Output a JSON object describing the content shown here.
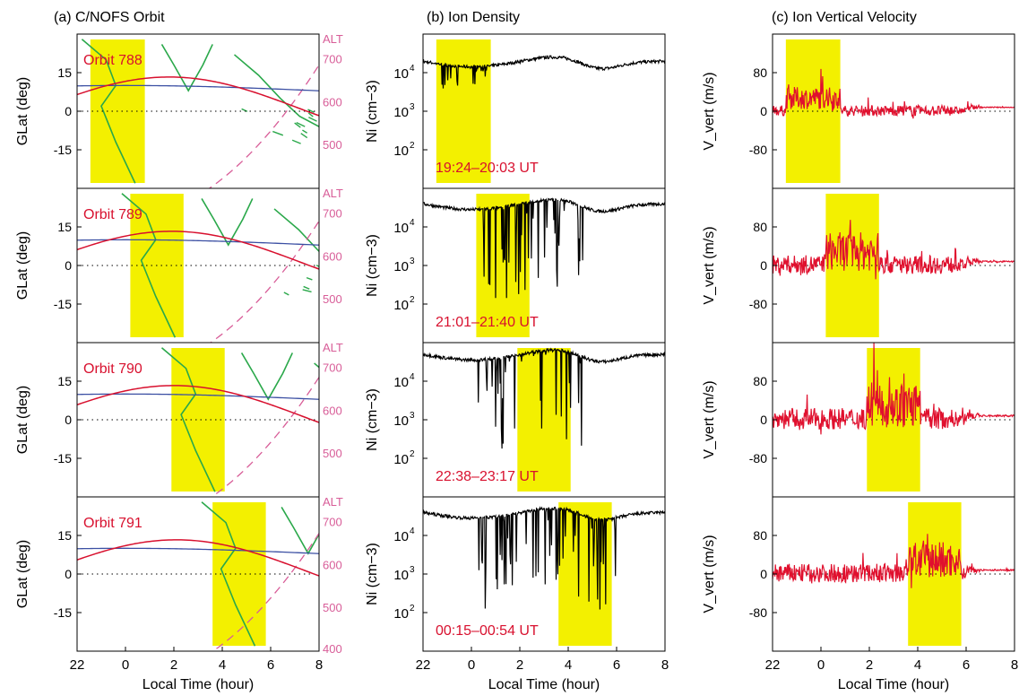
{
  "chart_data": {
    "type": "line",
    "colors": {
      "highlight": "#f3f000",
      "orbit_track": "#d8102e",
      "dip_equator": "#3b4fa3",
      "altitude": "#d85d98",
      "coastline": "#2aa84a",
      "density": "#000000",
      "velocity": "#e0102e"
    },
    "columns": [
      {
        "title": "(a) C/NOFS Orbit",
        "ylabel": "GLat (deg)",
        "ylabel_right": "ALT",
        "ylim": [
          -30,
          30
        ],
        "yticks": [
          -15,
          0,
          15
        ],
        "yticks_right": [
          400,
          500,
          600,
          700
        ]
      },
      {
        "title": "(b) Ion Density",
        "ylabel": "Ni (cm−3)",
        "ylim_log": [
          1,
          5
        ],
        "yticks": [
          "10",
          "10",
          "10"
        ],
        "ytick_exponents": [
          "2",
          "3",
          "4"
        ]
      },
      {
        "title": "(c) Ion Vertical Velocity",
        "ylabel": "V_vert (m/s)",
        "ylim": [
          -160,
          160
        ],
        "yticks": [
          -80,
          0,
          80
        ]
      }
    ],
    "xlabel": "Local Time (hour)",
    "xticks": [
      22,
      0,
      2,
      4,
      6,
      8
    ],
    "xlim": [
      22,
      32
    ],
    "rows": [
      {
        "orbit": "Orbit 788",
        "ut": "19:24–20:03 UT",
        "highlight": [
          22.55,
          24.8
        ],
        "alt_ticks_shown": [
          500,
          600,
          700
        ],
        "ni_base": 4.3,
        "vel_amp": 40
      },
      {
        "orbit": "Orbit 789",
        "ut": "21:01–21:40 UT",
        "highlight": [
          24.2,
          26.4
        ],
        "alt_ticks_shown": [
          500,
          600,
          700
        ],
        "ni_base": 4.6,
        "vel_amp": 70
      },
      {
        "orbit": "Orbit 790",
        "ut": "22:38–23:17 UT",
        "highlight": [
          25.9,
          28.1
        ],
        "alt_ticks_shown": [
          500,
          600,
          700
        ],
        "ni_base": 4.7,
        "vel_amp": 80
      },
      {
        "orbit": "Orbit 791",
        "ut": "00:15–00:54 UT",
        "highlight": [
          27.6,
          29.8
        ],
        "alt_ticks_shown": [
          400,
          500,
          600,
          700
        ],
        "ni_base": 4.6,
        "vel_amp": 70
      }
    ]
  }
}
